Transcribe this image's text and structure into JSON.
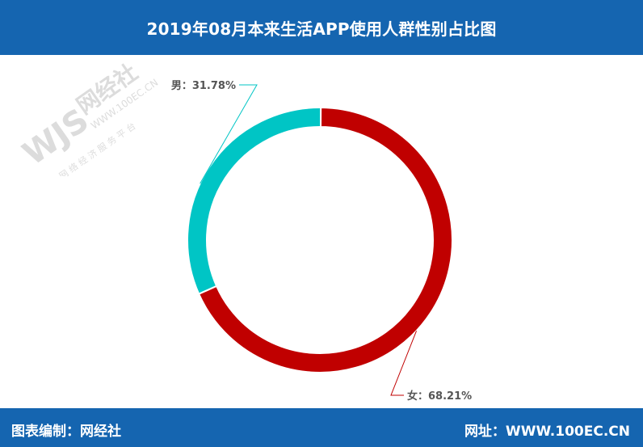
{
  "header": {
    "title": "2019年08月本来生活APP使用人群性别占比图"
  },
  "chart_data": {
    "type": "pie",
    "donut": true,
    "labels": [
      "男",
      "女"
    ],
    "values": [
      31.78,
      68.21
    ],
    "value_labels": [
      "男：31.78%",
      "女：68.21%"
    ],
    "colors": [
      "#00c5c5",
      "#c00000"
    ],
    "legend": "none"
  },
  "watermark": {
    "logo": "WJS",
    "name": "网经社",
    "url": "WWW.100EC.CN",
    "tagline": "网 络 经 济 服 务 平 台"
  },
  "footer": {
    "left": "图表编制：网经社",
    "right": "网址：WWW.100EC.CN"
  }
}
